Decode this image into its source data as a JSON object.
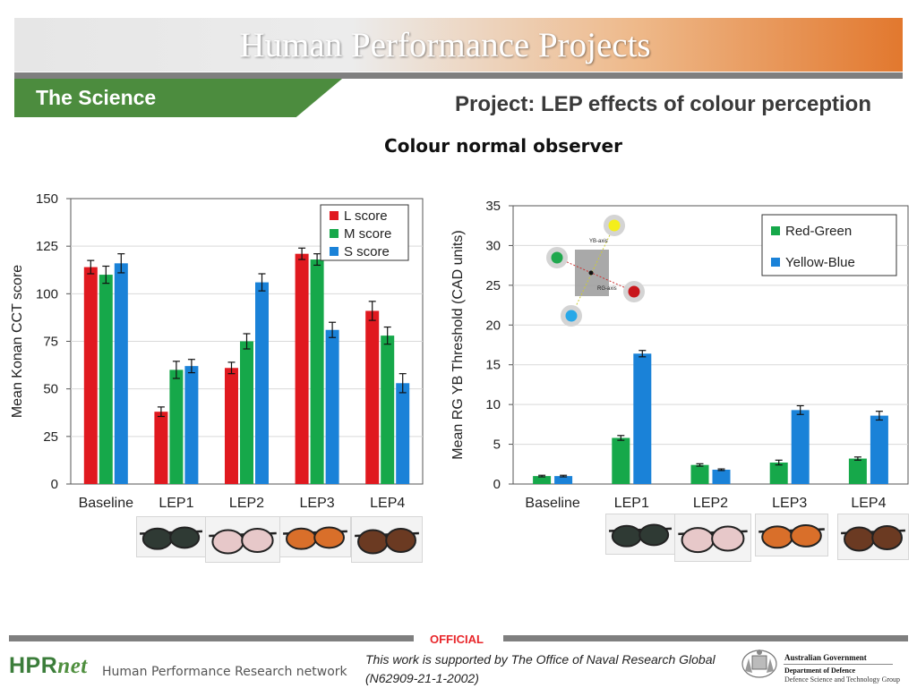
{
  "header": {
    "title": "Human Performance Projects",
    "section_tab": "The Science",
    "project_title": "Project: LEP effects of colour perception",
    "subtitle": "Colour normal observer"
  },
  "chart_data": [
    {
      "type": "bar",
      "title": "",
      "xlabel": "",
      "ylabel": "Mean Konan CCT score",
      "categories": [
        "Baseline",
        "LEP1",
        "LEP2",
        "LEP3",
        "LEP4"
      ],
      "ylim": [
        0,
        150
      ],
      "yticks": [
        0,
        25,
        50,
        75,
        100,
        125,
        150
      ],
      "legend_position": "top-right",
      "series": [
        {
          "name": "L score",
          "color": "#e0191f",
          "values": [
            114,
            38,
            61,
            121,
            91
          ],
          "errors": [
            3.5,
            2.5,
            3,
            3,
            5
          ]
        },
        {
          "name": "M score",
          "color": "#16a84a",
          "values": [
            110,
            60,
            75,
            118,
            78
          ],
          "errors": [
            4.5,
            4.5,
            4,
            3,
            4.5
          ]
        },
        {
          "name": "S score",
          "color": "#1a82d8",
          "values": [
            116,
            62,
            106,
            81,
            53
          ],
          "errors": [
            5,
            3.5,
            4.5,
            4,
            5
          ]
        }
      ]
    },
    {
      "type": "bar",
      "title": "",
      "xlabel": "",
      "ylabel": "Mean RG YB Threshold (CAD units)",
      "categories": [
        "Baseline",
        "LEP1",
        "LEP2",
        "LEP3",
        "LEP4"
      ],
      "ylim": [
        0,
        35
      ],
      "yticks": [
        0,
        5,
        10,
        15,
        20,
        25,
        30,
        35
      ],
      "legend_position": "top-right",
      "series": [
        {
          "name": "Red-Green",
          "color": "#16a84a",
          "values": [
            1.0,
            5.8,
            2.4,
            2.7,
            3.2
          ],
          "errors": [
            0.1,
            0.3,
            0.15,
            0.3,
            0.2
          ]
        },
        {
          "name": "Yellow-Blue",
          "color": "#1a82d8",
          "values": [
            1.0,
            16.4,
            1.8,
            9.3,
            8.6
          ],
          "errors": [
            0.1,
            0.4,
            0.1,
            0.55,
            0.55
          ]
        }
      ],
      "inset": {
        "yb_axis_label": "YB-axis",
        "rg_axis_label": "RG-axis"
      }
    }
  ],
  "photos": [
    {
      "name": "lep1-glasses-photo",
      "tint": "#2f3a34"
    },
    {
      "name": "lep2-glasses-photo",
      "tint": "#e7c8c9"
    },
    {
      "name": "lep3-glasses-photo",
      "tint": "#d96f2a"
    },
    {
      "name": "lep4-glasses-photo",
      "tint": "#6b3a22"
    }
  ],
  "footer": {
    "classification": "OFFICIAL",
    "logo_hpr": "HPR",
    "logo_net": "net",
    "logo_tagline": "Human Performance Research network",
    "support_text": "This work is supported by The Office of Naval Research Global (N62909-21-1-2002)",
    "gov_line1": "Australian Government",
    "gov_line2": "Department of Defence",
    "gov_line3": "Defence Science and Technology Group"
  }
}
